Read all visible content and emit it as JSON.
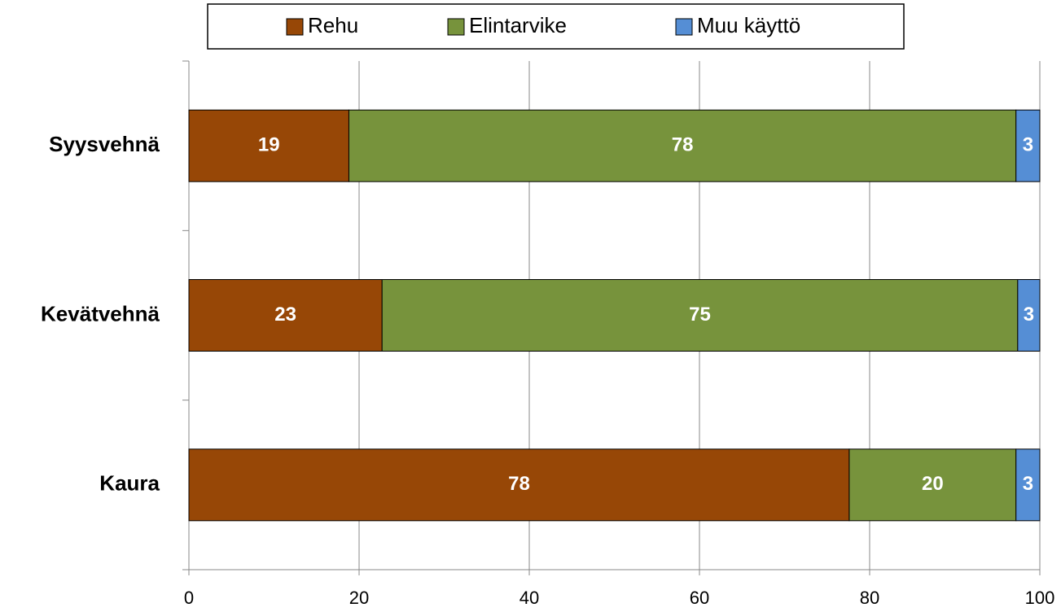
{
  "chart_data": {
    "type": "stacked_bar_horizontal",
    "categories": [
      "Syysvehnä",
      "Kevätvehnä",
      "Kaura"
    ],
    "series": [
      {
        "name": "Rehu",
        "color": "#974706",
        "values": [
          18.8,
          22.7,
          77.6
        ],
        "value_labels": [
          "19",
          "23",
          "78"
        ]
      },
      {
        "name": "Elintarvike",
        "color": "#77933c",
        "values": [
          78.4,
          74.7,
          19.6
        ],
        "value_labels": [
          "78",
          "75",
          "20"
        ]
      },
      {
        "name": "Muu käyttö",
        "color": "#558ed5",
        "values": [
          2.8,
          2.6,
          2.8
        ],
        "value_labels": [
          "3",
          "3",
          "3"
        ]
      }
    ],
    "xlim": [
      0,
      100
    ],
    "xticks": [
      0,
      20,
      40,
      60,
      80,
      100
    ],
    "grid": true,
    "legend": "top"
  }
}
